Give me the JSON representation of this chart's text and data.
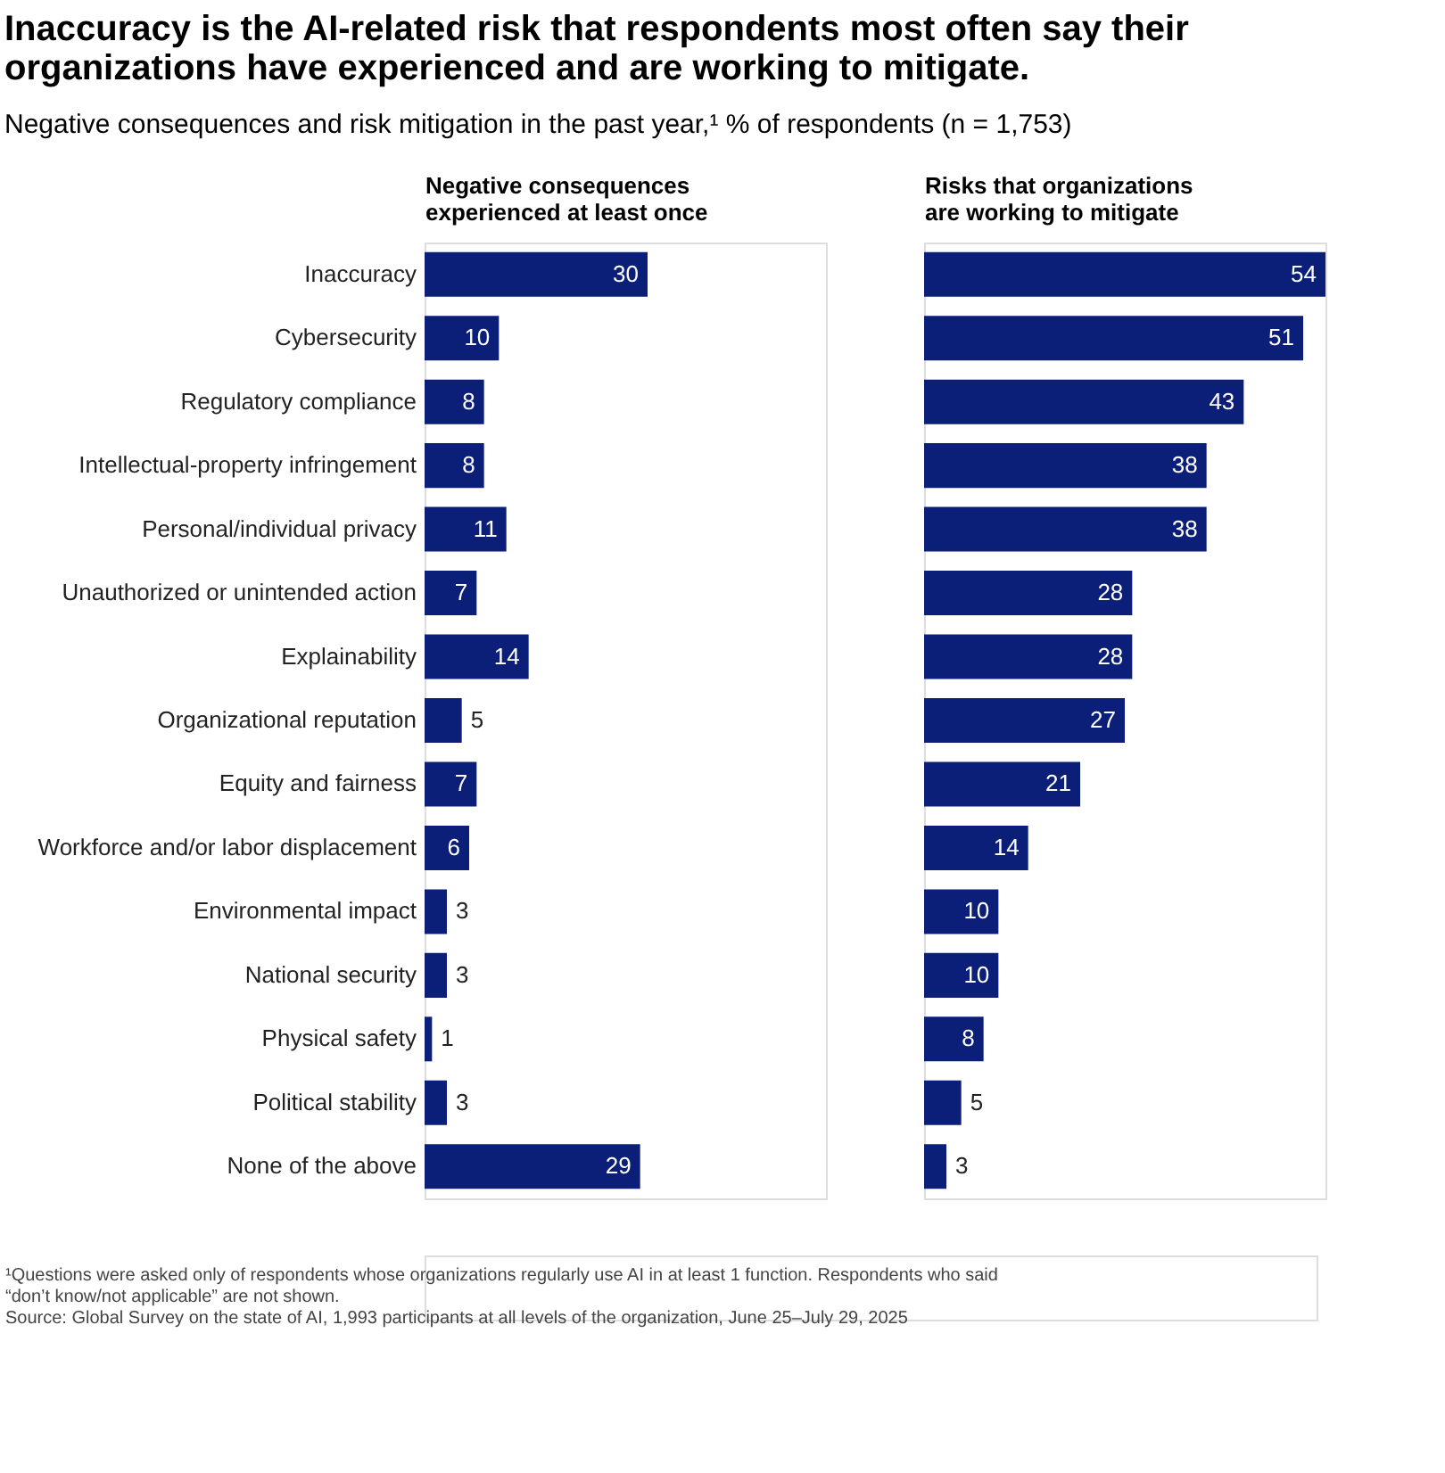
{
  "chart_data": [
    {
      "type": "bar",
      "orientation": "horizontal",
      "title": "Inaccuracy is the AI-related risk that respondents most often say their organizations have experienced and are working to mitigate.",
      "subtitle": "Negative consequences and risk mitigation in the past year,¹ % of respondents (n = 1,753)",
      "xlabel": "Negative consequences experienced at least once",
      "categories": [
        "Inaccuracy",
        "Cybersecurity",
        "Regulatory compliance",
        "Intellectual-property infringement",
        "Personal/individual privacy",
        "Unauthorized or unintended action",
        "Explainability",
        "Organizational reputation",
        "Equity and fairness",
        "Workforce and/or labor displacement",
        "Environmental impact",
        "National security",
        "Physical safety",
        "Political stability",
        "None of the above"
      ],
      "values": [
        30,
        10,
        8,
        8,
        11,
        7,
        14,
        5,
        7,
        6,
        3,
        3,
        1,
        3,
        29
      ],
      "color": "#0b1f78",
      "data_labels": true,
      "tick_labels": "y",
      "annotations": [
        "¹Questions were asked only of respondents whose organizations regularly use AI in at least 1 function. Respondents who said “don’t know/not applicable” are not shown.",
        "Source: Global Survey on the state of AI, 1,993 participants at all levels of the organization, June 25–July 29, 2025"
      ]
    },
    {
      "type": "bar",
      "orientation": "horizontal",
      "xlabel": "Risks that organizations are working to mitigate",
      "categories": [
        "Inaccuracy",
        "Cybersecurity",
        "Regulatory compliance",
        "Intellectual-property infringement",
        "Personal/individual privacy",
        "Unauthorized or unintended action",
        "Explainability",
        "Organizational reputation",
        "Equity and fairness",
        "Workforce and/or labor displacement",
        "Environmental impact",
        "National security",
        "Physical safety",
        "Political stability",
        "None of the above"
      ],
      "values": [
        54,
        51,
        43,
        38,
        38,
        28,
        28,
        27,
        21,
        14,
        10,
        10,
        8,
        5,
        3
      ],
      "color": "#0b1f78",
      "data_labels": true,
      "tick_labels": false
    }
  ]
}
